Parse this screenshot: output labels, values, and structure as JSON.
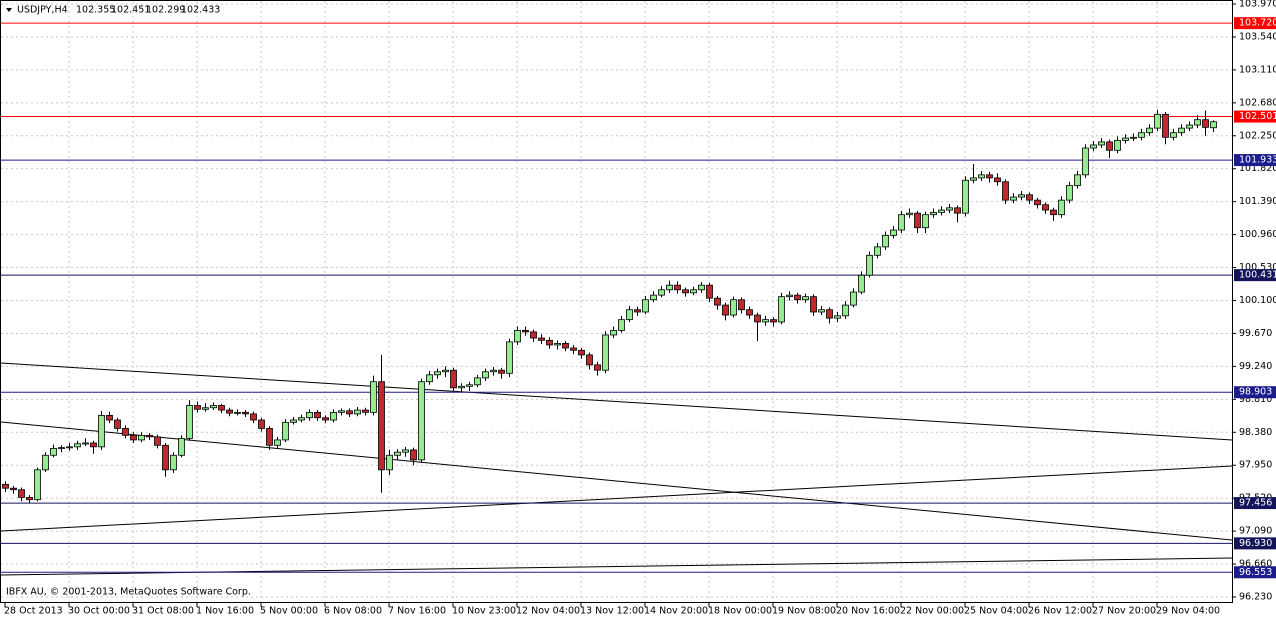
{
  "chart_data": {
    "type": "candlestick",
    "symbol": "USDJPY,H4",
    "footer": "IBFX AU, © 2001-2013, MetaQuotes Software Corp.",
    "ylim": [
      96.23,
      103.97
    ],
    "yticks": [
      {
        "value": 103.97,
        "label": "103.970"
      },
      {
        "value": 103.54,
        "label": "103.540"
      },
      {
        "value": 103.11,
        "label": "103.110"
      },
      {
        "value": 102.68,
        "label": "102.680"
      },
      {
        "value": 102.25,
        "label": "102.250"
      },
      {
        "value": 101.82,
        "label": "101.820"
      },
      {
        "value": 101.39,
        "label": "101.390"
      },
      {
        "value": 100.96,
        "label": "100.960"
      },
      {
        "value": 100.53,
        "label": "100.530"
      },
      {
        "value": 100.1,
        "label": "100.100"
      },
      {
        "value": 99.67,
        "label": "99.670"
      },
      {
        "value": 99.24,
        "label": "99.240"
      },
      {
        "value": 98.81,
        "label": "98.810"
      },
      {
        "value": 98.38,
        "label": "98.380"
      },
      {
        "value": 97.95,
        "label": "97.950"
      },
      {
        "value": 97.52,
        "label": "97.520"
      },
      {
        "value": 97.09,
        "label": "97.090"
      },
      {
        "value": 96.66,
        "label": "96.660"
      },
      {
        "value": 96.23,
        "label": "96.230"
      }
    ],
    "xticks": [
      {
        "value": 0,
        "label": "28 Oct 2013"
      },
      {
        "value": 8,
        "label": "30 Oct 00:00"
      },
      {
        "value": 16,
        "label": "31 Oct 08:00"
      },
      {
        "value": 24,
        "label": "1 Nov 16:00"
      },
      {
        "value": 32,
        "label": "5 Nov 00:00"
      },
      {
        "value": 40,
        "label": "6 Nov 08:00"
      },
      {
        "value": 48,
        "label": "7 Nov 16:00"
      },
      {
        "value": 56,
        "label": "10 Nov 23:00"
      },
      {
        "value": 64,
        "label": "12 Nov 04:00"
      },
      {
        "value": 72,
        "label": "13 Nov 12:00"
      },
      {
        "value": 80,
        "label": "14 Nov 20:00"
      },
      {
        "value": 88,
        "label": "18 Nov 00:00"
      },
      {
        "value": 96,
        "label": "19 Nov 08:00"
      },
      {
        "value": 104,
        "label": "20 Nov 16:00"
      },
      {
        "value": 112,
        "label": "22 Nov 00:00"
      },
      {
        "value": 120,
        "label": "25 Nov 04:00"
      },
      {
        "value": 128,
        "label": "26 Nov 12:00"
      },
      {
        "value": 136,
        "label": "27 Nov 20:00"
      },
      {
        "value": 144,
        "label": "29 Nov 04:00"
      }
    ],
    "grid": true,
    "up_color": "#90ee90",
    "down_color": "#c1272d",
    "levels": [
      {
        "value": 103.72,
        "label": "103.720",
        "color": "#ff0000"
      },
      {
        "value": 102.501,
        "label": "102.501",
        "color": "#ff0000"
      },
      {
        "value": 101.933,
        "label": "101.933",
        "color": "#1c1c8c"
      },
      {
        "value": 100.431,
        "label": "100.431",
        "color": "#14145a"
      },
      {
        "value": 98.903,
        "label": "98.903",
        "color": "#1c1c8c"
      },
      {
        "value": 97.456,
        "label": "97.456",
        "color": "#14145a"
      },
      {
        "value": 96.93,
        "label": "96.930",
        "color": "#14145a"
      },
      {
        "value": 96.553,
        "label": "96.553",
        "color": "#1c1c8c"
      }
    ],
    "candles": [
      [
        97.7,
        97.74,
        97.6,
        97.65
      ],
      [
        97.65,
        97.68,
        97.58,
        97.63
      ],
      [
        97.63,
        97.66,
        97.48,
        97.53
      ],
      [
        97.53,
        97.56,
        97.46,
        97.5
      ],
      [
        97.5,
        97.92,
        97.48,
        97.89
      ],
      [
        97.89,
        98.12,
        97.86,
        98.08
      ],
      [
        98.08,
        98.22,
        98.05,
        98.17
      ],
      [
        98.17,
        98.21,
        98.12,
        98.18
      ],
      [
        98.18,
        98.24,
        98.14,
        98.19
      ],
      [
        98.19,
        98.27,
        98.15,
        98.23
      ],
      [
        98.23,
        98.3,
        98.2,
        98.24
      ],
      [
        98.24,
        98.27,
        98.1,
        98.19
      ],
      [
        98.19,
        98.66,
        98.15,
        98.6
      ],
      [
        98.6,
        98.65,
        98.5,
        98.54
      ],
      [
        98.54,
        98.57,
        98.39,
        98.43
      ],
      [
        98.43,
        98.47,
        98.3,
        98.34
      ],
      [
        98.34,
        98.38,
        98.24,
        98.28
      ],
      [
        98.28,
        98.38,
        98.25,
        98.34
      ],
      [
        98.34,
        98.37,
        98.28,
        98.32
      ],
      [
        98.32,
        98.35,
        98.17,
        98.21
      ],
      [
        98.21,
        98.24,
        97.8,
        97.89
      ],
      [
        97.89,
        98.12,
        97.85,
        98.08
      ],
      [
        98.08,
        98.34,
        98.05,
        98.3
      ],
      [
        98.3,
        98.8,
        98.27,
        98.73
      ],
      [
        98.73,
        98.78,
        98.64,
        98.68
      ],
      [
        98.68,
        98.76,
        98.65,
        98.7
      ],
      [
        98.7,
        98.77,
        98.67,
        98.73
      ],
      [
        98.73,
        98.75,
        98.63,
        98.67
      ],
      [
        98.67,
        98.7,
        98.59,
        98.63
      ],
      [
        98.63,
        98.68,
        98.6,
        98.64
      ],
      [
        98.64,
        98.67,
        98.58,
        98.62
      ],
      [
        98.62,
        98.65,
        98.5,
        98.54
      ],
      [
        98.54,
        98.57,
        98.39,
        98.43
      ],
      [
        98.43,
        98.46,
        98.15,
        98.21
      ],
      [
        98.21,
        98.32,
        98.17,
        98.28
      ],
      [
        98.28,
        98.55,
        98.25,
        98.51
      ],
      [
        98.51,
        98.58,
        98.48,
        98.54
      ],
      [
        98.54,
        98.61,
        98.51,
        98.57
      ],
      [
        98.57,
        98.68,
        98.53,
        98.64
      ],
      [
        98.64,
        98.67,
        98.53,
        98.57
      ],
      [
        98.57,
        98.6,
        98.5,
        98.54
      ],
      [
        98.54,
        98.68,
        98.51,
        98.64
      ],
      [
        98.64,
        98.69,
        98.6,
        98.66
      ],
      [
        98.66,
        98.69,
        98.58,
        98.62
      ],
      [
        98.62,
        98.71,
        98.59,
        98.67
      ],
      [
        98.67,
        98.7,
        98.6,
        98.64
      ],
      [
        98.64,
        99.12,
        98.6,
        99.04
      ],
      [
        99.04,
        99.39,
        97.59,
        97.89
      ],
      [
        97.89,
        98.15,
        97.82,
        98.08
      ],
      [
        98.08,
        98.16,
        98.02,
        98.12
      ],
      [
        98.12,
        98.19,
        98.06,
        98.15
      ],
      [
        98.15,
        98.18,
        97.95,
        98.02
      ],
      [
        98.02,
        99.08,
        97.98,
        99.04
      ],
      [
        99.04,
        99.18,
        99.0,
        99.13
      ],
      [
        99.13,
        99.21,
        99.08,
        99.17
      ],
      [
        99.17,
        99.24,
        99.1,
        99.19
      ],
      [
        99.19,
        99.22,
        98.92,
        98.96
      ],
      [
        98.96,
        99.02,
        98.9,
        98.98
      ],
      [
        98.98,
        99.04,
        98.92,
        99.0
      ],
      [
        99.0,
        99.13,
        98.97,
        99.09
      ],
      [
        99.09,
        99.21,
        99.05,
        99.17
      ],
      [
        99.17,
        99.23,
        99.12,
        99.19
      ],
      [
        99.19,
        99.22,
        99.08,
        99.15
      ],
      [
        99.15,
        99.6,
        99.1,
        99.56
      ],
      [
        99.56,
        99.76,
        99.52,
        99.71
      ],
      [
        99.71,
        99.76,
        99.64,
        99.69
      ],
      [
        99.69,
        99.72,
        99.56,
        99.61
      ],
      [
        99.61,
        99.66,
        99.53,
        99.58
      ],
      [
        99.58,
        99.62,
        99.47,
        99.52
      ],
      [
        99.52,
        99.58,
        99.46,
        99.54
      ],
      [
        99.54,
        99.57,
        99.44,
        99.48
      ],
      [
        99.48,
        99.52,
        99.4,
        99.45
      ],
      [
        99.45,
        99.48,
        99.34,
        99.39
      ],
      [
        99.39,
        99.42,
        99.2,
        99.26
      ],
      [
        99.26,
        99.3,
        99.12,
        99.19
      ],
      [
        99.19,
        99.7,
        99.15,
        99.65
      ],
      [
        99.65,
        99.76,
        99.61,
        99.71
      ],
      [
        99.71,
        99.9,
        99.68,
        99.85
      ],
      [
        99.85,
        100.03,
        99.82,
        99.98
      ],
      [
        99.98,
        100.02,
        99.9,
        99.95
      ],
      [
        99.95,
        100.16,
        99.92,
        100.11
      ],
      [
        100.11,
        100.22,
        100.08,
        100.17
      ],
      [
        100.17,
        100.29,
        100.14,
        100.24
      ],
      [
        100.24,
        100.36,
        100.2,
        100.3
      ],
      [
        100.3,
        100.35,
        100.19,
        100.24
      ],
      [
        100.24,
        100.27,
        100.15,
        100.2
      ],
      [
        100.2,
        100.28,
        100.17,
        100.24
      ],
      [
        100.24,
        100.34,
        100.2,
        100.3
      ],
      [
        100.3,
        100.33,
        100.08,
        100.13
      ],
      [
        100.13,
        100.16,
        99.98,
        100.04
      ],
      [
        100.04,
        100.07,
        99.84,
        99.91
      ],
      [
        99.91,
        100.15,
        99.88,
        100.11
      ],
      [
        100.11,
        100.14,
        99.93,
        99.98
      ],
      [
        99.98,
        100.02,
        99.86,
        99.91
      ],
      [
        99.91,
        99.94,
        99.57,
        99.82
      ],
      [
        99.82,
        99.9,
        99.77,
        99.85
      ],
      [
        99.85,
        99.88,
        99.76,
        99.82
      ],
      [
        99.82,
        100.2,
        99.79,
        100.15
      ],
      [
        100.15,
        100.22,
        100.1,
        100.17
      ],
      [
        100.17,
        100.2,
        100.06,
        100.11
      ],
      [
        100.11,
        100.19,
        100.07,
        100.15
      ],
      [
        100.15,
        100.18,
        99.9,
        99.95
      ],
      [
        99.95,
        100.03,
        99.91,
        99.98
      ],
      [
        99.98,
        100.01,
        99.8,
        99.87
      ],
      [
        99.87,
        99.95,
        99.82,
        99.9
      ],
      [
        99.9,
        100.09,
        99.86,
        100.04
      ],
      [
        100.04,
        100.26,
        100.01,
        100.21
      ],
      [
        100.21,
        100.48,
        100.18,
        100.43
      ],
      [
        100.43,
        100.74,
        100.4,
        100.69
      ],
      [
        100.69,
        100.85,
        100.65,
        100.8
      ],
      [
        100.8,
        101.0,
        100.76,
        100.95
      ],
      [
        100.95,
        101.07,
        100.91,
        101.02
      ],
      [
        101.02,
        101.27,
        100.98,
        101.22
      ],
      [
        101.22,
        101.3,
        101.18,
        101.24
      ],
      [
        101.24,
        101.27,
        100.98,
        101.05
      ],
      [
        101.05,
        101.26,
        100.98,
        101.22
      ],
      [
        101.22,
        101.3,
        101.18,
        101.25
      ],
      [
        101.25,
        101.33,
        101.21,
        101.28
      ],
      [
        101.28,
        101.36,
        101.24,
        101.31
      ],
      [
        101.31,
        101.34,
        101.12,
        101.24
      ],
      [
        101.24,
        101.72,
        101.2,
        101.67
      ],
      [
        101.67,
        101.88,
        101.63,
        101.7
      ],
      [
        101.7,
        101.79,
        101.66,
        101.74
      ],
      [
        101.74,
        101.78,
        101.64,
        101.7
      ],
      [
        101.7,
        101.76,
        101.6,
        101.65
      ],
      [
        101.65,
        101.68,
        101.36,
        101.41
      ],
      [
        101.41,
        101.5,
        101.37,
        101.45
      ],
      [
        101.45,
        101.53,
        101.41,
        101.48
      ],
      [
        101.48,
        101.51,
        101.36,
        101.41
      ],
      [
        101.41,
        101.44,
        101.3,
        101.35
      ],
      [
        101.35,
        101.38,
        101.23,
        101.28
      ],
      [
        101.28,
        101.31,
        101.14,
        101.22
      ],
      [
        101.22,
        101.46,
        101.18,
        101.41
      ],
      [
        101.41,
        101.65,
        101.37,
        101.6
      ],
      [
        101.6,
        101.79,
        101.56,
        101.74
      ],
      [
        101.74,
        102.14,
        101.7,
        102.09
      ],
      [
        102.09,
        102.18,
        102.05,
        102.13
      ],
      [
        102.13,
        102.22,
        102.09,
        102.17
      ],
      [
        102.17,
        102.2,
        101.96,
        102.06
      ],
      [
        102.06,
        102.24,
        102.02,
        102.19
      ],
      [
        102.19,
        102.27,
        102.15,
        102.22
      ],
      [
        102.22,
        102.28,
        102.18,
        102.23
      ],
      [
        102.23,
        102.34,
        102.19,
        102.29
      ],
      [
        102.29,
        102.4,
        102.25,
        102.35
      ],
      [
        102.35,
        102.59,
        102.31,
        102.53
      ],
      [
        102.53,
        102.56,
        102.14,
        102.23
      ],
      [
        102.23,
        102.34,
        102.19,
        102.29
      ],
      [
        102.29,
        102.4,
        102.25,
        102.35
      ],
      [
        102.35,
        102.44,
        102.31,
        102.39
      ],
      [
        102.39,
        102.52,
        102.35,
        102.46
      ],
      [
        102.46,
        102.58,
        102.25,
        102.36
      ],
      [
        102.355,
        102.451,
        102.299,
        102.433
      ]
    ]
  }
}
